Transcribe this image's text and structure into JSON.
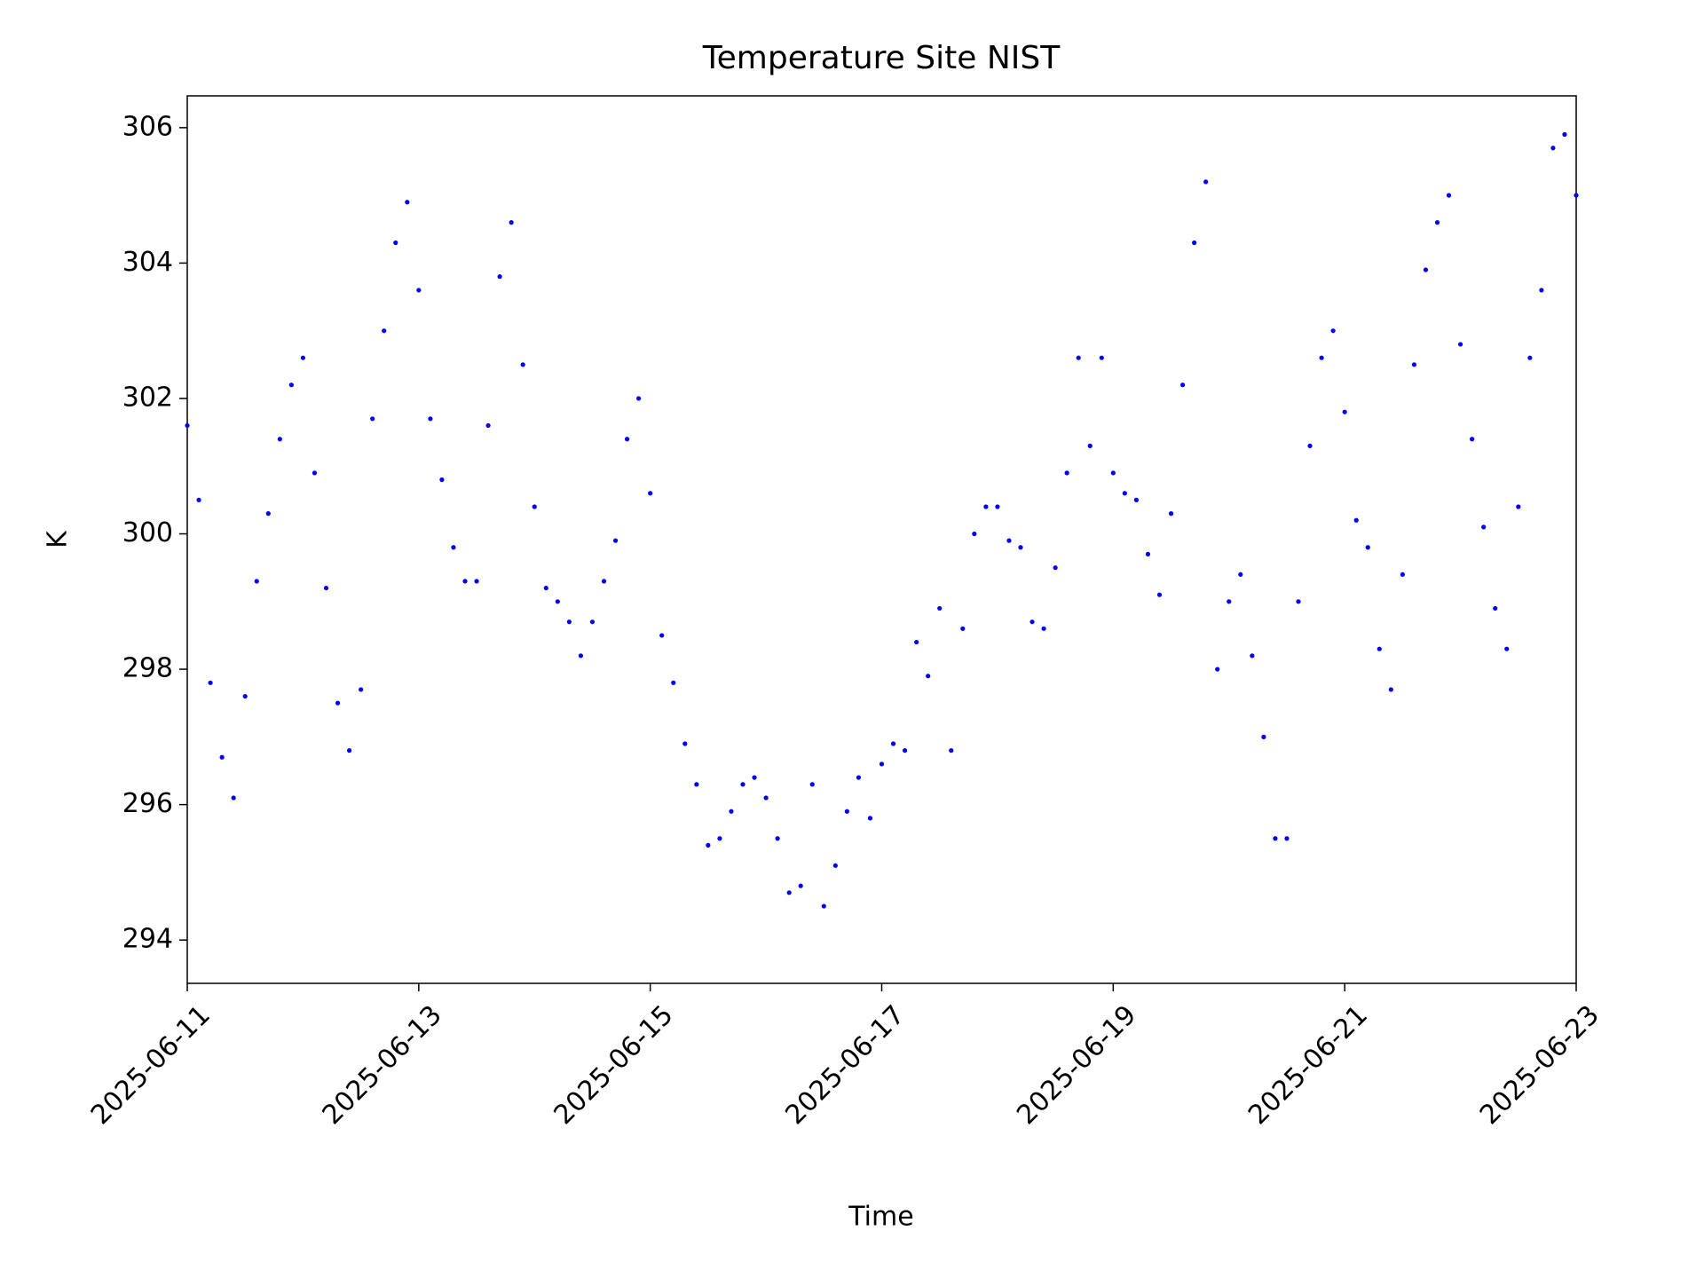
{
  "chart_data": {
    "type": "scatter",
    "title": "Temperature Site NIST",
    "x_label": "Time",
    "y_label": "K",
    "x": [
      0.0,
      0.1,
      0.2,
      0.3,
      0.4,
      0.5,
      0.6,
      0.7,
      0.8,
      0.9,
      1.0,
      1.1,
      1.2,
      1.3,
      1.4,
      1.5,
      1.6,
      1.7,
      1.8,
      1.9,
      2.0,
      2.1,
      2.2,
      2.3,
      2.4,
      2.5,
      2.6,
      2.7,
      2.8,
      2.9,
      3.0,
      3.1,
      3.2,
      3.3,
      3.4,
      3.5,
      3.6,
      3.7,
      3.8,
      3.9,
      4.0,
      4.1,
      4.2,
      4.3,
      4.4,
      4.5,
      4.6,
      4.7,
      4.8,
      4.9,
      5.0,
      5.1,
      5.2,
      5.3,
      5.4,
      5.5,
      5.6,
      5.7,
      5.8,
      5.9,
      6.0,
      6.1,
      6.2,
      6.3,
      6.4,
      6.5,
      6.6,
      6.7,
      6.8,
      6.9,
      7.0,
      7.1,
      7.2,
      7.3,
      7.4,
      7.5,
      7.6,
      7.7,
      7.8,
      7.9,
      8.0,
      8.1,
      8.2,
      8.3,
      8.4,
      8.5,
      8.6,
      8.7,
      8.8,
      8.9,
      9.0,
      9.1,
      9.2,
      9.3,
      9.4,
      9.5,
      9.6,
      9.7,
      9.8,
      9.9,
      10.0,
      10.1,
      10.2,
      10.3,
      10.4,
      10.5,
      10.6,
      10.7,
      10.8,
      10.9,
      11.0,
      11.1,
      11.2,
      11.3,
      11.4,
      11.5,
      11.6,
      11.7,
      11.8,
      11.9,
      12.0
    ],
    "values": [
      301.6,
      300.5,
      297.8,
      296.7,
      296.1,
      297.6,
      299.3,
      300.3,
      301.4,
      302.2,
      302.6,
      300.9,
      299.2,
      297.5,
      296.8,
      297.7,
      301.7,
      303.0,
      304.3,
      304.9,
      303.6,
      301.7,
      300.8,
      299.8,
      299.3,
      299.3,
      301.6,
      303.8,
      304.6,
      302.5,
      300.4,
      299.2,
      299.0,
      298.7,
      298.2,
      298.7,
      299.3,
      299.9,
      301.4,
      302.0,
      300.6,
      298.5,
      297.8,
      296.9,
      296.3,
      295.4,
      295.5,
      295.9,
      296.3,
      296.4,
      296.1,
      295.5,
      294.7,
      294.8,
      296.3,
      294.5,
      295.1,
      295.9,
      296.4,
      295.8,
      296.6,
      296.9,
      296.8,
      298.4,
      297.9,
      298.9,
      296.8,
      298.6,
      300.0,
      300.4,
      300.4,
      299.9,
      299.8,
      298.7,
      298.6,
      299.5,
      300.9,
      302.6,
      301.3,
      302.6,
      300.9,
      300.6,
      300.5,
      299.7,
      299.1,
      300.3,
      302.2,
      304.3,
      305.2,
      298.0,
      299.0,
      299.4,
      298.2,
      297.0,
      295.5,
      295.5,
      299.0,
      301.3,
      302.6,
      303.0,
      301.8,
      300.2,
      299.8,
      298.3,
      297.7,
      299.4,
      302.5,
      303.9,
      304.6,
      305.0,
      302.8,
      301.4,
      300.1,
      298.9,
      298.3,
      300.4,
      302.6,
      303.6,
      305.7,
      305.9,
      305.0
    ],
    "color": "#0000ff",
    "xlim": [
      0,
      12
    ],
    "xticks": [
      {
        "value": 0,
        "label": "2025-06-11"
      },
      {
        "value": 2,
        "label": "2025-06-13"
      },
      {
        "value": 4,
        "label": "2025-06-15"
      },
      {
        "value": 6,
        "label": "2025-06-17"
      },
      {
        "value": 8,
        "label": "2025-06-19"
      },
      {
        "value": 10,
        "label": "2025-06-21"
      },
      {
        "value": 12,
        "label": "2025-06-23"
      }
    ],
    "ylim": [
      293.36,
      306.47
    ],
    "yticks": [
      294,
      296,
      298,
      300,
      302,
      304,
      306
    ],
    "grid": false
  }
}
